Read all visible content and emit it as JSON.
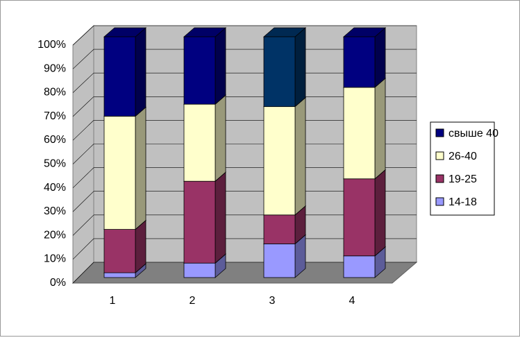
{
  "chart_data": {
    "type": "bar3d_stacked_percent",
    "categories": [
      "1",
      "2",
      "3",
      "4"
    ],
    "series": [
      {
        "name": "14-18",
        "color": "#9999ff",
        "values": [
          2,
          6,
          14,
          9
        ]
      },
      {
        "name": "19-25",
        "color": "#993366",
        "values": [
          18,
          34,
          12,
          32
        ]
      },
      {
        "name": "26-40",
        "color": "#ffffcc",
        "values": [
          47,
          32,
          45,
          38
        ]
      },
      {
        "name": "свыше 40",
        "color": "#000080",
        "point_colors": [
          "#000080",
          "#000080",
          "#003366",
          "#000080"
        ],
        "values": [
          33,
          28,
          29,
          21
        ]
      }
    ],
    "ylim": [
      0,
      100
    ],
    "yticks": [
      {
        "value": 0,
        "label": "0%"
      },
      {
        "value": 10,
        "label": "10%"
      },
      {
        "value": 20,
        "label": "20%"
      },
      {
        "value": 30,
        "label": "30%"
      },
      {
        "value": 40,
        "label": "40%"
      },
      {
        "value": 50,
        "label": "50%"
      },
      {
        "value": 60,
        "label": "60%"
      },
      {
        "value": 70,
        "label": "70%"
      },
      {
        "value": 80,
        "label": "80%"
      },
      {
        "value": 90,
        "label": "90%"
      },
      {
        "value": 100,
        "label": "100%"
      }
    ],
    "grid": true,
    "legend": "right"
  }
}
